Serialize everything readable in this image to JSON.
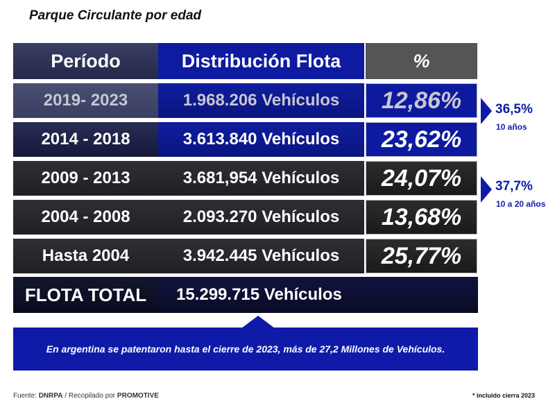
{
  "title": "Parque Circulante por edad",
  "header": {
    "period": "Período",
    "distribution": "Distribución Flota",
    "percent": "%"
  },
  "rows": [
    {
      "period": "2019- 2023",
      "vehicles": "1.968.206 Vehículos",
      "percent": "12,86%"
    },
    {
      "period": "2014 - 2018",
      "vehicles": "3.613.840 Vehículos",
      "percent": "23,62%"
    },
    {
      "period": "2009 - 2013",
      "vehicles": "3.681,954 Vehículos",
      "percent": "24,07%"
    },
    {
      "period": "2004 - 2008",
      "vehicles": "2.093.270 Vehículos",
      "percent": "13,68%"
    },
    {
      "period": "Hasta 2004",
      "vehicles": "3.942.445 Vehículos",
      "percent": "25,77%"
    }
  ],
  "total": {
    "label": "FLOTA TOTAL",
    "vehicles": "15.299.715 Vehículos"
  },
  "note": "En argentina se patentaron hasta el cierre de 2023, más de 27,2 Millones de Vehículos.",
  "annotations": [
    {
      "value": "36,5%",
      "label": "10 años"
    },
    {
      "value": "37,7%",
      "label": "10 a 20 años"
    }
  ],
  "source": {
    "prefix": "Fuente: ",
    "source1": "DNRPA",
    "middle": " / Recopilado por ",
    "source2": "PROMOTIVE"
  },
  "footnote": "* incluido cierra 2023",
  "colors": {
    "accent_blue": "#0f1ba8",
    "dark_navy": "#15183a",
    "dark_gray": "#202024"
  }
}
